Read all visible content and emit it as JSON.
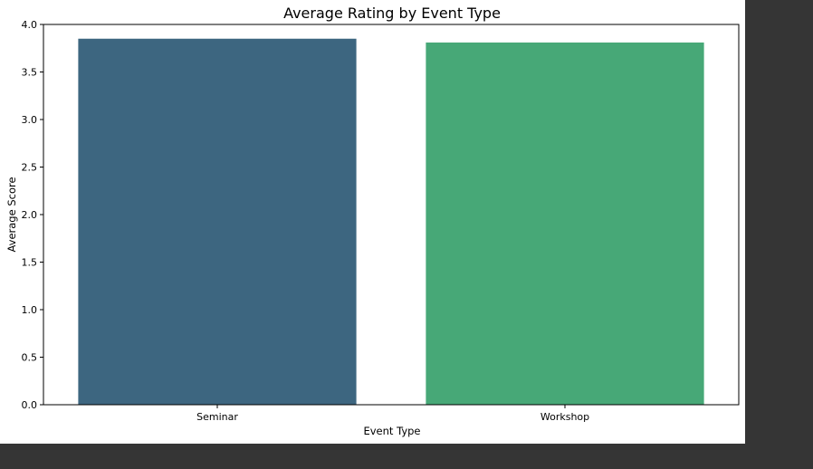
{
  "chart_data": {
    "type": "bar",
    "title": "Average Rating by Event Type",
    "xlabel": "Event Type",
    "ylabel": "Average Score",
    "categories": [
      "Seminar",
      "Workshop"
    ],
    "values": [
      3.85,
      3.81
    ],
    "ylim": [
      0,
      4.0
    ],
    "yticks": [
      0.0,
      0.5,
      1.0,
      1.5,
      2.0,
      2.5,
      3.0,
      3.5,
      4.0
    ],
    "ytick_labels": [
      "0.0",
      "0.5",
      "1.0",
      "1.5",
      "2.0",
      "2.5",
      "3.0",
      "3.5",
      "4.0"
    ],
    "colors": [
      "#3d6680",
      "#47a877"
    ],
    "grid": false,
    "legend": "none"
  },
  "colors": {
    "figure_background": "#ffffff",
    "page_background": "#353535",
    "axes_edge": "#000000"
  }
}
